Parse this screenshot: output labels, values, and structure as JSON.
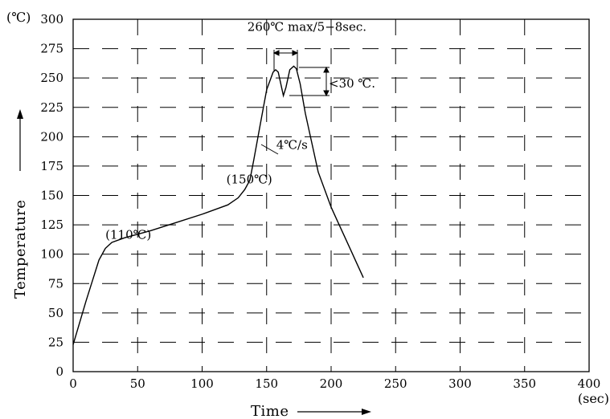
{
  "chart_data": {
    "type": "line",
    "title": "",
    "xlabel": "Time",
    "ylabel": "Temperature",
    "x_unit": "(sec)",
    "y_unit": "(℃)",
    "xlim": [
      0,
      400
    ],
    "ylim": [
      0,
      300
    ],
    "x_ticks": [
      0,
      50,
      100,
      150,
      200,
      250,
      300,
      350,
      400
    ],
    "y_ticks": [
      0,
      25,
      50,
      75,
      100,
      125,
      150,
      175,
      200,
      225,
      250,
      275,
      300
    ],
    "grid": true,
    "grid_style": "dashed",
    "series": [
      {
        "x": [
          0,
          10,
          20,
          25,
          30,
          40,
          60,
          80,
          100,
          120,
          128,
          133,
          137,
          140,
          145,
          150,
          155,
          157,
          159,
          161,
          163,
          165,
          168,
          171,
          173,
          176,
          180,
          185,
          190,
          195,
          200,
          205,
          210,
          215,
          220,
          225
        ],
        "y": [
          23,
          60,
          95,
          105,
          110,
          114,
          120,
          127,
          134,
          142,
          148,
          155,
          163,
          180,
          210,
          240,
          255,
          257,
          255,
          245,
          235,
          242,
          257,
          260,
          258,
          245,
          220,
          195,
          170,
          155,
          140,
          128,
          116,
          104,
          92,
          80
        ]
      }
    ],
    "annotations": [
      {
        "text": "(110℃)",
        "x": 25,
        "y": 105
      },
      {
        "text": "(150℃)",
        "x": 130,
        "y": 150
      },
      {
        "text": "4℃/s",
        "x": 145,
        "y": 193
      },
      {
        "text": "260℃  max/5−8sec.",
        "x": 160,
        "y": 260
      },
      {
        "text": "<30 ℃.",
        "x": 200,
        "y": 242
      }
    ]
  }
}
